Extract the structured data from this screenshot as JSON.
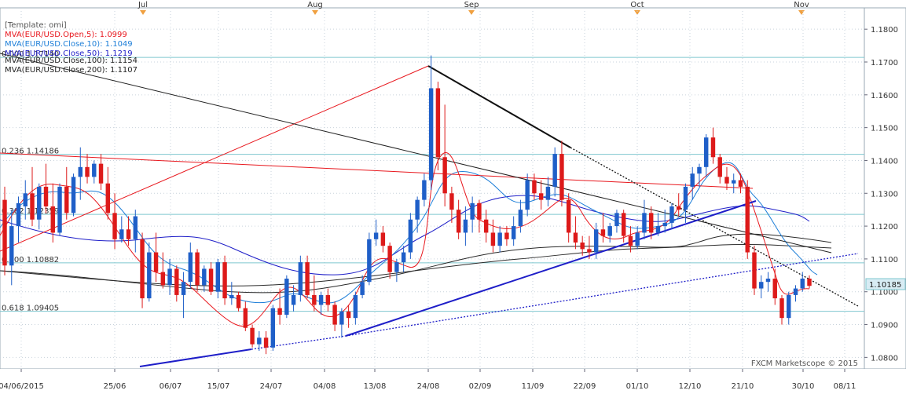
{
  "legend": {
    "template": "[Template: omi]",
    "items": [
      {
        "label": "MVA(EUR/USD.Open,5): 1.0999",
        "color": "#e8181e"
      },
      {
        "label": "MVA(EUR/USD.Close,10): 1.1049",
        "color": "#1e7fd8"
      },
      {
        "label": "MVA(EUR/USD.Close,50): 1.1219",
        "color": "#1e1ec8"
      },
      {
        "label": "MVA(EUR/USD.Close,100): 1.1154",
        "color": "#222222"
      },
      {
        "label": "MVA(EUR/USD.Close,200): 1.1107",
        "color": "#222222"
      }
    ]
  },
  "watermark": "FXCM Marketscope © 2015",
  "colors": {
    "bull": "#1f5fc8",
    "bear": "#dd1a1a",
    "fib": "#7fc7cf",
    "grid": "#c9d3dc",
    "price_tag_bg": "#d8ecf4"
  },
  "chart_data": {
    "type": "candlestick",
    "instrument": "EUR/USD",
    "ylim": [
      1.0765,
      1.1865
    ],
    "y_ticks": [
      "1.0800",
      "1.0900",
      "1.1000",
      "1.1100",
      "1.1200",
      "1.1300",
      "1.1400",
      "1.1500",
      "1.1600",
      "1.1700",
      "1.1800"
    ],
    "x_tick_labels": [
      "04/06/2015",
      "25/06",
      "06/07",
      "15/07",
      "24/07",
      "04/08",
      "13/08",
      "24/08",
      "02/09",
      "11/09",
      "22/09",
      "01/10",
      "12/10",
      "21/10",
      "30/10",
      "08/11"
    ],
    "month_labels": [
      "Jul",
      "Aug",
      "Sep",
      "Oct",
      "Nov"
    ],
    "current_price": "1.10185",
    "fib_levels": [
      {
        "label": "0.236 1.14186",
        "value": 1.14186
      },
      {
        "label": "0.382 1.12359",
        "value": 1.12359
      },
      {
        "label": "0.500 1.10882",
        "value": 1.10882
      },
      {
        "label": "0.618 1.09405",
        "value": 1.09405
      },
      {
        "label": "0.000 1.17140",
        "value": 1.1714
      }
    ],
    "candles": [
      [
        1.128,
        1.132,
        1.105,
        1.108
      ],
      [
        1.108,
        1.125,
        1.102,
        1.12
      ],
      [
        1.12,
        1.129,
        1.115,
        1.127
      ],
      [
        1.126,
        1.134,
        1.122,
        1.13
      ],
      [
        1.13,
        1.138,
        1.12,
        1.122
      ],
      [
        1.122,
        1.133,
        1.119,
        1.132
      ],
      [
        1.132,
        1.139,
        1.124,
        1.126
      ],
      [
        1.126,
        1.133,
        1.115,
        1.118
      ],
      [
        1.118,
        1.133,
        1.117,
        1.132
      ],
      [
        1.132,
        1.138,
        1.122,
        1.124
      ],
      [
        1.124,
        1.136,
        1.123,
        1.135
      ],
      [
        1.135,
        1.144,
        1.128,
        1.138
      ],
      [
        1.138,
        1.142,
        1.133,
        1.135
      ],
      [
        1.135,
        1.14,
        1.133,
        1.139
      ],
      [
        1.139,
        1.142,
        1.131,
        1.133
      ],
      [
        1.133,
        1.138,
        1.122,
        1.124
      ],
      [
        1.124,
        1.13,
        1.113,
        1.116
      ],
      [
        1.116,
        1.123,
        1.115,
        1.119
      ],
      [
        1.119,
        1.123,
        1.114,
        1.116
      ],
      [
        1.116,
        1.125,
        1.112,
        1.123
      ],
      [
        1.116,
        1.118,
        1.095,
        1.098
      ],
      [
        1.098,
        1.115,
        1.097,
        1.112
      ],
      [
        1.112,
        1.118,
        1.103,
        1.106
      ],
      [
        1.106,
        1.112,
        1.101,
        1.102
      ],
      [
        1.102,
        1.11,
        1.099,
        1.107
      ],
      [
        1.107,
        1.108,
        1.097,
        1.099
      ],
      [
        1.099,
        1.106,
        1.092,
        1.103
      ],
      [
        1.103,
        1.115,
        1.101,
        1.112
      ],
      [
        1.112,
        1.113,
        1.1,
        1.102
      ],
      [
        1.102,
        1.108,
        1.1,
        1.107
      ],
      [
        1.107,
        1.109,
        1.099,
        1.1
      ],
      [
        1.1,
        1.11,
        1.098,
        1.109
      ],
      [
        1.109,
        1.111,
        1.096,
        1.098
      ],
      [
        1.098,
        1.103,
        1.096,
        1.099
      ],
      [
        1.099,
        1.1,
        1.094,
        1.095
      ],
      [
        1.095,
        1.097,
        1.088,
        1.089
      ],
      [
        1.089,
        1.09,
        1.083,
        1.084
      ],
      [
        1.084,
        1.088,
        1.082,
        1.086
      ],
      [
        1.086,
        1.088,
        1.081,
        1.083
      ],
      [
        1.083,
        1.096,
        1.082,
        1.095
      ],
      [
        1.095,
        1.101,
        1.09,
        1.093
      ],
      [
        1.093,
        1.105,
        1.092,
        1.104
      ],
      [
        1.096,
        1.102,
        1.094,
        1.099
      ],
      [
        1.099,
        1.111,
        1.097,
        1.109
      ],
      [
        1.109,
        1.111,
        1.098,
        1.099
      ],
      [
        1.099,
        1.105,
        1.094,
        1.096
      ],
      [
        1.096,
        1.1,
        1.093,
        1.099
      ],
      [
        1.099,
        1.101,
        1.094,
        1.096
      ],
      [
        1.096,
        1.097,
        1.088,
        1.09
      ],
      [
        1.09,
        1.095,
        1.086,
        1.094
      ],
      [
        1.094,
        1.096,
        1.089,
        1.092
      ],
      [
        1.092,
        1.1,
        1.09,
        1.099
      ],
      [
        1.099,
        1.105,
        1.098,
        1.103
      ],
      [
        1.103,
        1.118,
        1.102,
        1.116
      ],
      [
        1.116,
        1.122,
        1.114,
        1.118
      ],
      [
        1.118,
        1.12,
        1.112,
        1.114
      ],
      [
        1.114,
        1.115,
        1.104,
        1.106
      ],
      [
        1.106,
        1.11,
        1.103,
        1.109
      ],
      [
        1.109,
        1.114,
        1.106,
        1.112
      ],
      [
        1.112,
        1.124,
        1.11,
        1.122
      ],
      [
        1.122,
        1.129,
        1.118,
        1.128
      ],
      [
        1.128,
        1.136,
        1.126,
        1.134
      ],
      [
        1.134,
        1.172,
        1.131,
        1.162
      ],
      [
        1.162,
        1.164,
        1.137,
        1.141
      ],
      [
        1.141,
        1.157,
        1.126,
        1.13
      ],
      [
        1.13,
        1.132,
        1.121,
        1.125
      ],
      [
        1.125,
        1.128,
        1.116,
        1.118
      ],
      [
        1.118,
        1.126,
        1.114,
        1.122
      ],
      [
        1.122,
        1.129,
        1.118,
        1.127
      ],
      [
        1.127,
        1.128,
        1.118,
        1.122
      ],
      [
        1.122,
        1.125,
        1.115,
        1.118
      ],
      [
        1.118,
        1.122,
        1.112,
        1.114
      ],
      [
        1.114,
        1.12,
        1.112,
        1.118
      ],
      [
        1.118,
        1.12,
        1.114,
        1.116
      ],
      [
        1.116,
        1.123,
        1.114,
        1.12
      ],
      [
        1.12,
        1.128,
        1.118,
        1.125
      ],
      [
        1.125,
        1.136,
        1.123,
        1.134
      ],
      [
        1.134,
        1.136,
        1.128,
        1.13
      ],
      [
        1.13,
        1.134,
        1.125,
        1.128
      ],
      [
        1.128,
        1.135,
        1.126,
        1.132
      ],
      [
        1.132,
        1.144,
        1.129,
        1.142
      ],
      [
        1.142,
        1.146,
        1.126,
        1.128
      ],
      [
        1.128,
        1.13,
        1.115,
        1.118
      ],
      [
        1.118,
        1.123,
        1.113,
        1.115
      ],
      [
        1.115,
        1.117,
        1.111,
        1.113
      ],
      [
        1.113,
        1.117,
        1.11,
        1.112
      ],
      [
        1.112,
        1.121,
        1.11,
        1.119
      ],
      [
        1.119,
        1.124,
        1.115,
        1.117
      ],
      [
        1.117,
        1.121,
        1.115,
        1.12
      ],
      [
        1.12,
        1.125,
        1.118,
        1.124
      ],
      [
        1.124,
        1.125,
        1.115,
        1.117
      ],
      [
        1.117,
        1.12,
        1.112,
        1.114
      ],
      [
        1.114,
        1.12,
        1.113,
        1.118
      ],
      [
        1.118,
        1.128,
        1.116,
        1.124
      ],
      [
        1.124,
        1.126,
        1.116,
        1.118
      ],
      [
        1.118,
        1.124,
        1.117,
        1.12
      ],
      [
        1.12,
        1.125,
        1.118,
        1.121
      ],
      [
        1.121,
        1.127,
        1.119,
        1.126
      ],
      [
        1.126,
        1.13,
        1.123,
        1.125
      ],
      [
        1.125,
        1.133,
        1.121,
        1.132
      ],
      [
        1.132,
        1.138,
        1.128,
        1.136
      ],
      [
        1.136,
        1.139,
        1.132,
        1.138
      ],
      [
        1.138,
        1.148,
        1.135,
        1.147
      ],
      [
        1.147,
        1.15,
        1.139,
        1.141
      ],
      [
        1.141,
        1.142,
        1.133,
        1.135
      ],
      [
        1.135,
        1.138,
        1.131,
        1.133
      ],
      [
        1.133,
        1.136,
        1.13,
        1.134
      ],
      [
        1.134,
        1.136,
        1.13,
        1.132
      ],
      [
        1.132,
        1.134,
        1.11,
        1.112
      ],
      [
        1.112,
        1.114,
        1.099,
        1.101
      ],
      [
        1.101,
        1.105,
        1.098,
        1.103
      ],
      [
        1.103,
        1.106,
        1.1,
        1.104
      ],
      [
        1.104,
        1.107,
        1.096,
        1.098
      ],
      [
        1.098,
        1.099,
        1.09,
        1.092
      ],
      [
        1.092,
        1.1,
        1.09,
        1.099
      ],
      [
        1.099,
        1.102,
        1.097,
        1.101
      ],
      [
        1.101,
        1.106,
        1.1,
        1.104
      ],
      [
        1.104,
        1.105,
        1.101,
        1.1018
      ]
    ]
  }
}
